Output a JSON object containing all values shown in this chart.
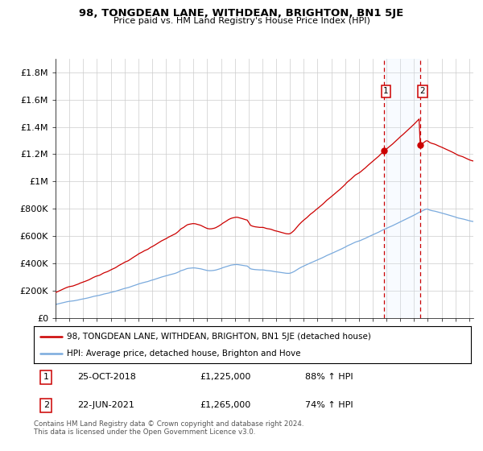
{
  "title": "98, TONGDEAN LANE, WITHDEAN, BRIGHTON, BN1 5JE",
  "subtitle": "Price paid vs. HM Land Registry's House Price Index (HPI)",
  "ylabel_ticks": [
    "£0",
    "£200K",
    "£400K",
    "£600K",
    "£800K",
    "£1M",
    "£1.2M",
    "£1.4M",
    "£1.6M",
    "£1.8M"
  ],
  "ytick_values": [
    0,
    200000,
    400000,
    600000,
    800000,
    1000000,
    1200000,
    1400000,
    1600000,
    1800000
  ],
  "ylim": [
    0,
    1900000
  ],
  "legend_line1": "98, TONGDEAN LANE, WITHDEAN, BRIGHTON, BN1 5JE (detached house)",
  "legend_line2": "HPI: Average price, detached house, Brighton and Hove",
  "annotation1_date": "25-OCT-2018",
  "annotation1_price": "£1,225,000",
  "annotation1_pct": "88% ↑ HPI",
  "annotation2_date": "22-JUN-2021",
  "annotation2_price": "£1,265,000",
  "annotation2_pct": "74% ↑ HPI",
  "footer": "Contains HM Land Registry data © Crown copyright and database right 2024.\nThis data is licensed under the Open Government Licence v3.0.",
  "red_color": "#cc0000",
  "blue_color": "#7aaadd",
  "shade_color": "#ddeeff",
  "sale1_x": 2018.82,
  "sale1_y": 1225000,
  "sale2_x": 2021.47,
  "sale2_y": 1265000,
  "xlim_left": 1995,
  "xlim_right": 2025.3
}
